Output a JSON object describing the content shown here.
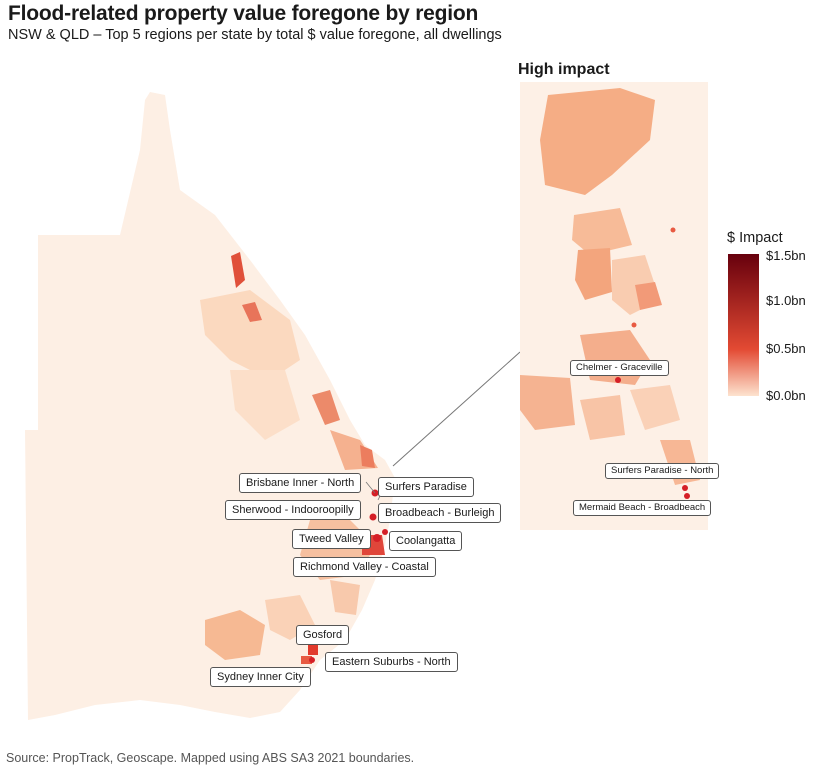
{
  "header": {
    "title": "Flood-related property value foregone by region",
    "subtitle": "NSW & QLD – Top 5 regions per state by total $ value foregone, all dwellings"
  },
  "inset": {
    "title": "High impact"
  },
  "legend": {
    "title": "$ Impact",
    "ticks": [
      "$1.5bn",
      "$1.0bn",
      "$0.5bn",
      "$0.0bn"
    ],
    "color_low": "#fde3cf",
    "color_mid": "#e34a33",
    "color_high": "#67000d"
  },
  "labels": {
    "brisbane_inner_north": "Brisbane Inner - North",
    "surfers_paradise": "Surfers Paradise",
    "sherwood": "Sherwood - Indooroopilly",
    "broadbeach": "Broadbeach - Burleigh",
    "tweed_valley": "Tweed Valley",
    "coolangatta": "Coolangatta",
    "richmond_valley": "Richmond Valley - Coastal",
    "gosford": "Gosford",
    "eastern_suburbs": "Eastern Suburbs - North",
    "sydney_inner": "Sydney Inner City",
    "chelmer": "Chelmer - Graceville",
    "surfers_north": "Surfers Paradise - North",
    "mermaid": "Mermaid Beach - Broadbeach"
  },
  "footer": {
    "source": "Source: PropTrack, Geoscape. Mapped using ABS SA3 2021 boundaries."
  }
}
